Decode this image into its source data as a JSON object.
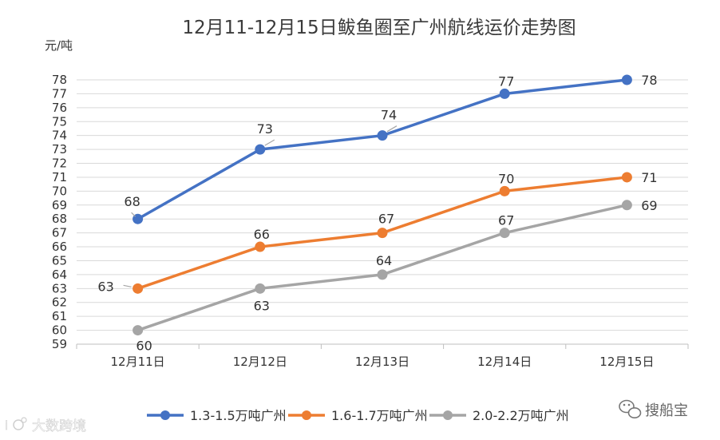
{
  "chart_data": {
    "type": "line",
    "title": "12月11-12月15日鲅鱼圈至广州航线运价走势图",
    "ylabel": "元/吨",
    "xlabel": "",
    "categories": [
      "12月11日",
      "12月12日",
      "12月13日",
      "12月14日",
      "12月15日"
    ],
    "y_ticks": [
      59,
      60,
      61,
      62,
      63,
      64,
      65,
      66,
      67,
      68,
      69,
      70,
      71,
      72,
      73,
      74,
      75,
      76,
      77,
      78
    ],
    "ylim": [
      59,
      78
    ],
    "grid": true,
    "legend_position": "bottom",
    "series": [
      {
        "name": "1.3-1.5万吨广州",
        "color": "#4472c4",
        "values": [
          68,
          73,
          74,
          77,
          78
        ]
      },
      {
        "name": "1.6-1.7万吨广州",
        "color": "#ed7d31",
        "values": [
          63,
          66,
          67,
          70,
          71
        ]
      },
      {
        "name": "2.0-2.2万吨广州",
        "color": "#a5a5a5",
        "values": [
          60,
          63,
          64,
          67,
          69
        ]
      }
    ]
  },
  "watermarks": {
    "right_text": "搜船宝",
    "right_icon": "wechat-icon",
    "left_text": "大数跨境",
    "left_prefix": "i"
  }
}
